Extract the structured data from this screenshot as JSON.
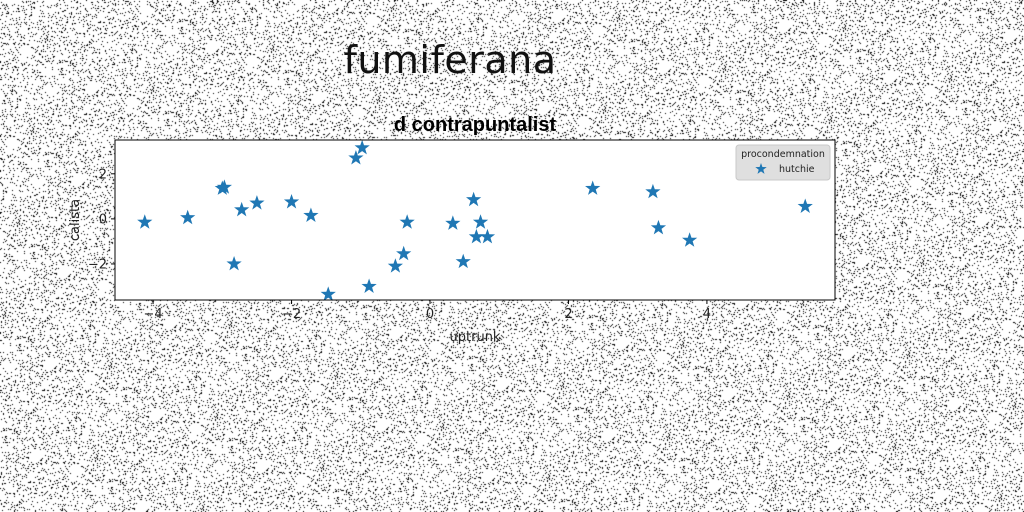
{
  "figure": {
    "suptitle": "fumiferana"
  },
  "chart_data": {
    "type": "scatter",
    "title": "d contrapuntalist",
    "xlabel": "uptrunk",
    "ylabel": "calista",
    "xlim": [
      -4.55,
      5.85
    ],
    "ylim": [
      -3.6,
      3.5
    ],
    "xticks": [
      -4,
      -2,
      0,
      2,
      4
    ],
    "yticks": [
      -2,
      0,
      2
    ],
    "xtick_labels": [
      "−4",
      "−2",
      "0",
      "2",
      "4"
    ],
    "ytick_labels": [
      "−2",
      "0",
      "2"
    ],
    "grid": false,
    "legend": {
      "title": "procondemnation",
      "position": "top-right"
    },
    "marker_color": "#1f77b4",
    "series": [
      {
        "name": "hutchie",
        "points": [
          [
            -4.12,
            -0.15
          ],
          [
            -3.5,
            0.05
          ],
          [
            -3.0,
            1.35
          ],
          [
            -2.97,
            1.4
          ],
          [
            -2.83,
            -2.0
          ],
          [
            -2.72,
            0.4
          ],
          [
            -2.5,
            0.7
          ],
          [
            -2.0,
            0.75
          ],
          [
            -1.72,
            0.15
          ],
          [
            -1.47,
            -3.35
          ],
          [
            -1.07,
            2.7
          ],
          [
            -0.98,
            3.15
          ],
          [
            -0.88,
            -3.0
          ],
          [
            -0.5,
            -2.1
          ],
          [
            -0.38,
            -1.55
          ],
          [
            -0.33,
            -0.15
          ],
          [
            0.33,
            -0.2
          ],
          [
            0.48,
            -1.9
          ],
          [
            0.63,
            0.85
          ],
          [
            0.67,
            -0.8
          ],
          [
            0.73,
            -0.15
          ],
          [
            0.83,
            -0.8
          ],
          [
            2.35,
            1.35
          ],
          [
            3.22,
            1.2
          ],
          [
            3.3,
            -0.4
          ],
          [
            3.75,
            -0.95
          ],
          [
            5.42,
            0.55
          ]
        ]
      }
    ]
  }
}
